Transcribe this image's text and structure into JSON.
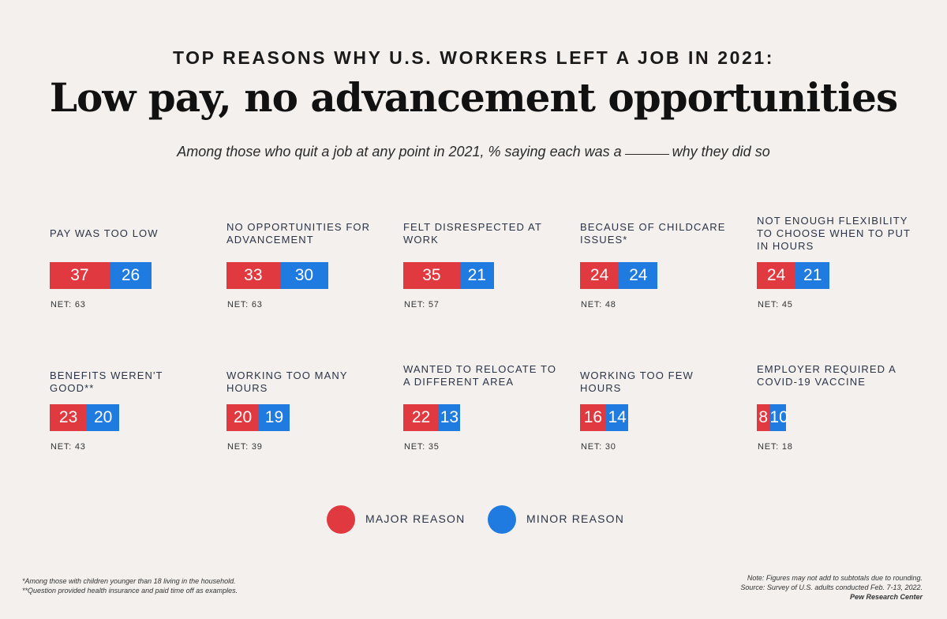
{
  "header": {
    "kicker": "TOP REASONS WHY U.S. WORKERS LEFT A JOB IN 2021:",
    "title": "Low pay, no advancement opportunities",
    "subtitle_before": "Among those who quit a job at any point in 2021, % saying each was a",
    "subtitle_after": "why they did so"
  },
  "legend": {
    "major_label": "MAJOR REASON",
    "minor_label": "MINOR REASON"
  },
  "colors": {
    "major": "#e0393f",
    "minor": "#1f7be0",
    "background": "#f3f0ee"
  },
  "chart_data": {
    "type": "bar",
    "stacked": true,
    "orientation": "horizontal",
    "series": [
      {
        "name": "MAJOR REASON",
        "values": [
          37,
          33,
          35,
          24,
          24,
          23,
          20,
          22,
          16,
          8
        ]
      },
      {
        "name": "MINOR REASON",
        "values": [
          26,
          30,
          21,
          24,
          21,
          20,
          19,
          13,
          14,
          10
        ]
      }
    ],
    "categories": [
      "PAY WAS TOO LOW",
      "NO OPPORTUNITIES FOR ADVANCEMENT",
      "FELT DISRESPECTED AT WORK",
      "BECAUSE OF CHILDCARE ISSUES*",
      "NOT ENOUGH FLEXIBILITY TO CHOOSE WHEN TO PUT IN HOURS",
      "BENEFITS WEREN'T GOOD**",
      "WORKING TOO MANY HOURS",
      "WANTED TO RELOCATE TO A DIFFERENT AREA",
      "WORKING TOO FEW HOURS",
      "EMPLOYER REQUIRED A COVID-19 VACCINE"
    ],
    "net": [
      "NET: 63",
      "NET: 63",
      "NET: 57",
      "NET: 48",
      "NET: 45",
      "NET: 43",
      "NET: 39",
      "NET: 35",
      "NET: 30",
      "NET: 18"
    ],
    "legend_position": "bottom-center"
  },
  "footnotes": {
    "left": [
      "*Among those with children younger than 18 living in the household.",
      "**Question provided health insurance and paid time off as examples."
    ],
    "right_note": "Note: Figures may not add to subtotals due to rounding.",
    "right_source": "Source: Survey of U.S. adults conducted Feb. 7-13, 2022.",
    "right_org": "Pew Research Center"
  }
}
